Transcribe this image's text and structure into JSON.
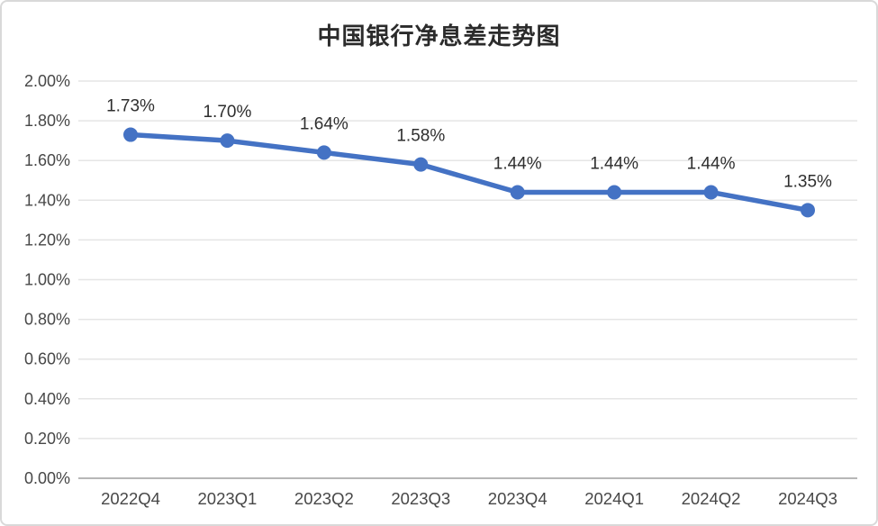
{
  "page": {
    "background": "#ffffff",
    "card_border_color": "#d9d9d9"
  },
  "chart_data": {
    "type": "line",
    "title": "中国银行净息差走势图",
    "categories": [
      "2022Q4",
      "2023Q1",
      "2023Q2",
      "2023Q3",
      "2023Q4",
      "2024Q1",
      "2024Q2",
      "2024Q3"
    ],
    "values": [
      1.73,
      1.7,
      1.64,
      1.58,
      1.44,
      1.44,
      1.44,
      1.35
    ],
    "data_labels": [
      "1.73%",
      "1.70%",
      "1.64%",
      "1.58%",
      "1.44%",
      "1.44%",
      "1.44%",
      "1.35%"
    ],
    "xlabel": "",
    "ylabel": "",
    "ylim": [
      0,
      2.0
    ],
    "ytick_step": 0.2,
    "ytick_labels": [
      "0.00%",
      "0.20%",
      "0.40%",
      "0.60%",
      "0.80%",
      "1.00%",
      "1.20%",
      "1.40%",
      "1.60%",
      "1.80%",
      "2.00%"
    ],
    "grid": true,
    "legend_position": "none",
    "line_color": "#4472C4",
    "marker_color": "#4472C4",
    "grid_color": "#e5e5e5",
    "axis_line_color": "#b7b7b7",
    "tick_label_color": "#474747",
    "data_label_color": "#2e2e2e",
    "title_color": "#2b2b2b"
  }
}
